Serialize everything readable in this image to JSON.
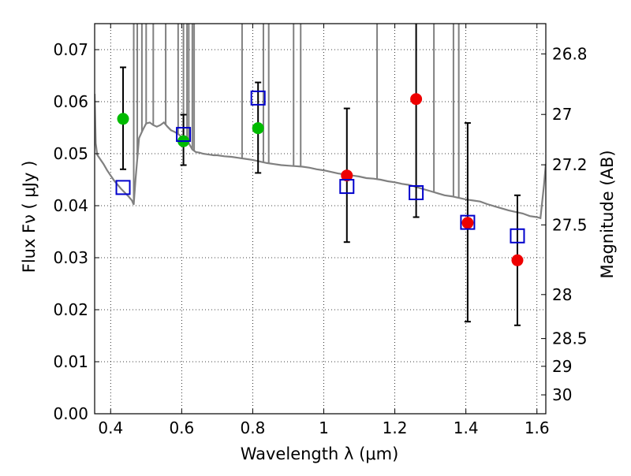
{
  "chart_data": {
    "type": "scatter",
    "xlabel": "Wavelength  λ (μm)",
    "ylabel": "Flux  Fν  ( μJy )",
    "y2label": "Magnitude (AB)",
    "xlim": [
      0.355,
      1.625
    ],
    "ylim": [
      0.0,
      0.075
    ],
    "grid": true,
    "x_ticks": [
      "0.4",
      "0.6",
      "0.8",
      "1",
      "1.2",
      "1.4",
      "1.6"
    ],
    "x_tick_values": [
      0.4,
      0.6,
      0.8,
      1.0,
      1.2,
      1.4,
      1.6
    ],
    "y_ticks": [
      "0.00",
      "0.01",
      "0.02",
      "0.03",
      "0.04",
      "0.05",
      "0.06",
      "0.07"
    ],
    "y_tick_values": [
      0.0,
      0.01,
      0.02,
      0.03,
      0.04,
      0.05,
      0.06,
      0.07
    ],
    "y2_ticks": [
      "26.8",
      "27",
      "27.2",
      "27.5",
      "28",
      "28.5",
      "29",
      "30"
    ],
    "y2_tick_values": [
      26.8,
      27.0,
      27.2,
      27.5,
      28.0,
      28.5,
      29.0,
      30.0
    ],
    "colors": {
      "model": "#808080",
      "detected": "#00bb00",
      "other": "#ee0000",
      "model_photometry": "#0000cc",
      "errorbar": "#000000"
    },
    "series": [
      {
        "marker": "line",
        "x": [
          0.355,
          0.358,
          0.362,
          0.37,
          0.38,
          0.39,
          0.4,
          0.41,
          0.42,
          0.43,
          0.44,
          0.45,
          0.46,
          0.465,
          0.47,
          0.48,
          0.49,
          0.5,
          0.51,
          0.52,
          0.53,
          0.54,
          0.55,
          0.56,
          0.57,
          0.58,
          0.59,
          0.6,
          0.61,
          0.62,
          0.63,
          0.64,
          0.65,
          0.66,
          0.67,
          0.68,
          0.69,
          0.7,
          0.72,
          0.74,
          0.76,
          0.78,
          0.8,
          0.82,
          0.84,
          0.86,
          0.88,
          0.9,
          0.92,
          0.94,
          0.96,
          0.98,
          1.0,
          1.02,
          1.04,
          1.06,
          1.08,
          1.1,
          1.12,
          1.14,
          1.16,
          1.18,
          1.2,
          1.22,
          1.24,
          1.26,
          1.28,
          1.3,
          1.32,
          1.34,
          1.36,
          1.38,
          1.4,
          1.42,
          1.44,
          1.46,
          1.48,
          1.5,
          1.52,
          1.54,
          1.56,
          1.58,
          1.6,
          1.61,
          1.62,
          1.625
        ],
        "y": [
          0.0615,
          0.052,
          0.0498,
          0.049,
          0.048,
          0.0468,
          0.0458,
          0.0448,
          0.044,
          0.0432,
          0.0425,
          0.0418,
          0.041,
          0.0402,
          0.045,
          0.053,
          0.0545,
          0.0558,
          0.056,
          0.0555,
          0.0552,
          0.0555,
          0.056,
          0.0552,
          0.0545,
          0.0542,
          0.0538,
          0.0532,
          0.0528,
          0.052,
          0.0508,
          0.0503,
          0.0502,
          0.05,
          0.0499,
          0.0498,
          0.0497,
          0.0497,
          0.0495,
          0.0494,
          0.0492,
          0.049,
          0.0488,
          0.0485,
          0.0482,
          0.048,
          0.0478,
          0.0477,
          0.0476,
          0.0475,
          0.0473,
          0.047,
          0.0468,
          0.0465,
          0.0462,
          0.046,
          0.0458,
          0.0456,
          0.0453,
          0.0452,
          0.045,
          0.0447,
          0.0445,
          0.0442,
          0.044,
          0.0436,
          0.0432,
          0.0428,
          0.0424,
          0.042,
          0.0418,
          0.0415,
          0.0412,
          0.041,
          0.0408,
          0.0403,
          0.0399,
          0.0395,
          0.0391,
          0.0388,
          0.0385,
          0.038,
          0.0378,
          0.0376,
          0.044,
          0.048
        ]
      },
      {
        "marker": "circle",
        "x": [
          0.435,
          0.605,
          0.815
        ],
        "y": [
          0.0567,
          0.0524,
          0.0549
        ],
        "err_lo": [
          0.047,
          0.0478,
          0.0463
        ],
        "err_hi": [
          0.0666,
          0.0575,
          0.0637
        ]
      },
      {
        "marker": "circle",
        "x": [
          1.065,
          1.26,
          1.405,
          1.545
        ],
        "y": [
          0.0458,
          0.0605,
          0.0367,
          0.0295
        ],
        "err_lo": [
          0.033,
          0.0378,
          0.0177,
          0.017
        ],
        "err_hi": [
          0.0587,
          0.075,
          0.0559,
          0.042
        ]
      },
      {
        "marker": "square",
        "x": [
          0.435,
          0.605,
          0.815,
          1.065,
          1.26,
          1.405,
          1.545
        ],
        "y": [
          0.0435,
          0.0537,
          0.0607,
          0.0437,
          0.0425,
          0.0368,
          0.0342
        ]
      }
    ]
  }
}
